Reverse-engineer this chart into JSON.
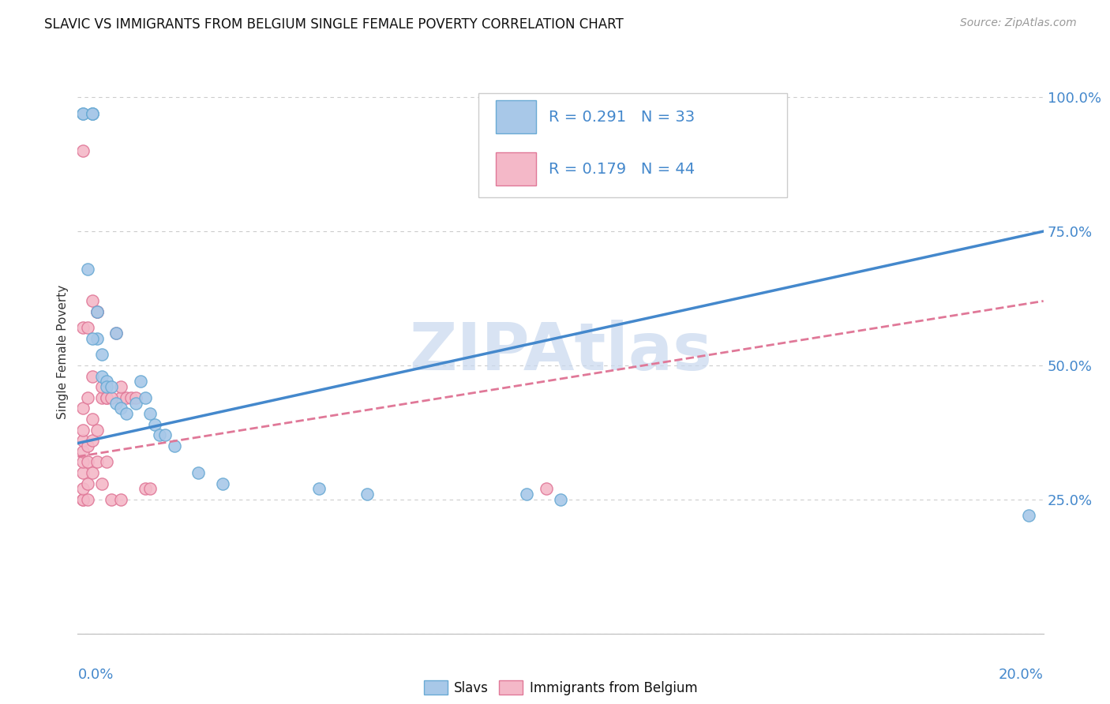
{
  "title": "SLAVIC VS IMMIGRANTS FROM BELGIUM SINGLE FEMALE POVERTY CORRELATION CHART",
  "source": "Source: ZipAtlas.com",
  "ylabel": "Single Female Poverty",
  "yticks": [
    0.0,
    0.25,
    0.5,
    0.75,
    1.0
  ],
  "ytick_labels": [
    "",
    "25.0%",
    "50.0%",
    "75.0%",
    "100.0%"
  ],
  "legend_blue_r": "R = 0.291",
  "legend_blue_n": "N = 33",
  "legend_pink_r": "R = 0.179",
  "legend_pink_n": "N = 44",
  "blue_scatter_color": "#a8c8e8",
  "blue_scatter_edge": "#6aaad4",
  "pink_scatter_color": "#f4b8c8",
  "pink_scatter_edge": "#e07898",
  "blue_line_color": "#4488cc",
  "pink_line_color": "#e07898",
  "watermark": "ZIPAtlas",
  "watermark_color": "#c8d8ee",
  "xlim": [
    0.0,
    0.2
  ],
  "ylim": [
    0.0,
    1.05
  ],
  "slavs_x": [
    0.001,
    0.001,
    0.002,
    0.003,
    0.003,
    0.003,
    0.004,
    0.004,
    0.005,
    0.005,
    0.006,
    0.006,
    0.007,
    0.008,
    0.008,
    0.009,
    0.01,
    0.012,
    0.013,
    0.014,
    0.015,
    0.016,
    0.017,
    0.018,
    0.02,
    0.025,
    0.03,
    0.05,
    0.06,
    0.093,
    0.1,
    0.197,
    0.003
  ],
  "slavs_y": [
    0.97,
    0.97,
    0.68,
    0.97,
    0.97,
    0.97,
    0.6,
    0.55,
    0.52,
    0.48,
    0.47,
    0.46,
    0.46,
    0.56,
    0.43,
    0.42,
    0.41,
    0.43,
    0.47,
    0.44,
    0.41,
    0.39,
    0.37,
    0.37,
    0.35,
    0.3,
    0.28,
    0.27,
    0.26,
    0.26,
    0.25,
    0.22,
    0.55
  ],
  "belgium_x": [
    0.001,
    0.001,
    0.001,
    0.001,
    0.001,
    0.001,
    0.001,
    0.001,
    0.001,
    0.002,
    0.002,
    0.002,
    0.002,
    0.002,
    0.003,
    0.003,
    0.003,
    0.003,
    0.004,
    0.004,
    0.004,
    0.005,
    0.005,
    0.006,
    0.006,
    0.007,
    0.008,
    0.009,
    0.009,
    0.01,
    0.011,
    0.012,
    0.014,
    0.015,
    0.097,
    0.001,
    0.001,
    0.002,
    0.003,
    0.004,
    0.005,
    0.006,
    0.007,
    0.009
  ],
  "belgium_y": [
    0.25,
    0.25,
    0.27,
    0.3,
    0.32,
    0.34,
    0.36,
    0.38,
    0.42,
    0.25,
    0.28,
    0.32,
    0.35,
    0.44,
    0.3,
    0.36,
    0.4,
    0.48,
    0.32,
    0.38,
    0.6,
    0.28,
    0.44,
    0.32,
    0.44,
    0.25,
    0.56,
    0.25,
    0.44,
    0.44,
    0.44,
    0.44,
    0.27,
    0.27,
    0.27,
    0.57,
    0.9,
    0.57,
    0.62,
    0.6,
    0.46,
    0.44,
    0.44,
    0.46
  ],
  "blue_trend_x0": 0.0,
  "blue_trend_y0": 0.355,
  "blue_trend_x1": 0.2,
  "blue_trend_y1": 0.75,
  "pink_trend_x0": 0.0,
  "pink_trend_y0": 0.33,
  "pink_trend_x1": 0.2,
  "pink_trend_y1": 0.62
}
